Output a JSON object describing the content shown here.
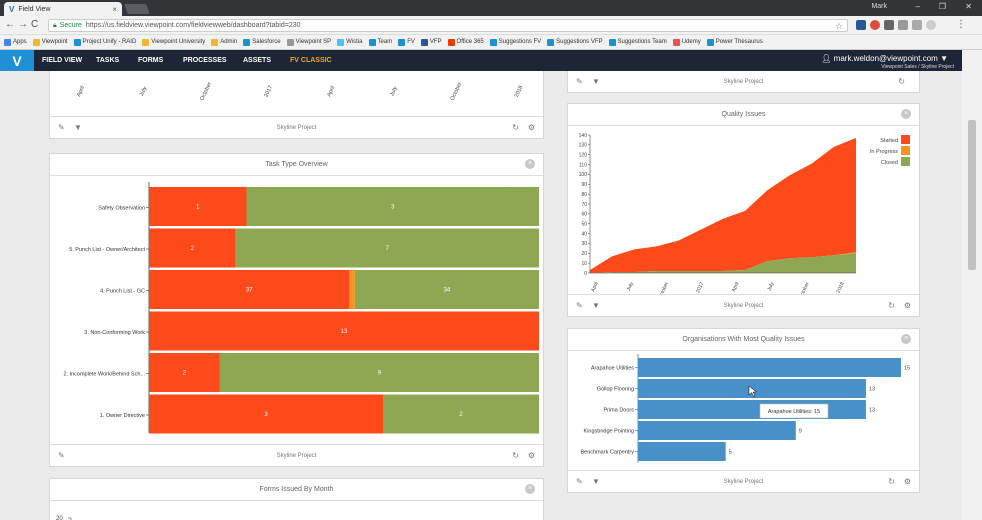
{
  "browser": {
    "tab_title": "Field View",
    "user": "Mark",
    "security_label": "Secure",
    "url": "https://us.fieldview.viewpoint.com/fieldviewweb/dashboard?tabid=230",
    "bookmarks": [
      {
        "label": "Apps",
        "color": "#4285f4"
      },
      {
        "label": "Viewpoint",
        "color": "#f2b632"
      },
      {
        "label": "Project Unify - RAID",
        "color": "#1f8fd6"
      },
      {
        "label": "Viewpoint University",
        "color": "#f2b632"
      },
      {
        "label": "Admin",
        "color": "#f2b632"
      },
      {
        "label": "Salesforce",
        "color": "#1798c1"
      },
      {
        "label": "Viewpoint SP",
        "color": "#999999"
      },
      {
        "label": "Wistia",
        "color": "#54bbff"
      },
      {
        "label": "Team",
        "color": "#1f8fd6"
      },
      {
        "label": "FV",
        "color": "#1f8fd6"
      },
      {
        "label": "VFP",
        "color": "#2b579a"
      },
      {
        "label": "Office 365",
        "color": "#eb3c00"
      },
      {
        "label": "Suggestions FV",
        "color": "#1f8fd6"
      },
      {
        "label": "Suggestions VFP",
        "color": "#1f8fd6"
      },
      {
        "label": "Suggestions Team",
        "color": "#1f8fd6"
      },
      {
        "label": "Udemy",
        "color": "#ec5252"
      },
      {
        "label": "Power Thesaurus",
        "color": "#1f8fd6"
      }
    ]
  },
  "app": {
    "logo": "V",
    "nav": [
      "FIELD VIEW",
      "TASKS",
      "FORMS",
      "PROCESSES",
      "ASSETS",
      "FV CLASSIC"
    ],
    "user_email": "mark.weldon@viewpoint.com",
    "user_sub": "Viewpoint Sales / Skyline Project"
  },
  "colors": {
    "started": "#fc4a1a",
    "in_progress": "#f7931e",
    "closed": "#8da753",
    "blue": "#4890c8"
  },
  "footer_label": "Skyline Project",
  "top_left_ticks": [
    "April",
    "July",
    "October",
    "2017",
    "April",
    "July",
    "October",
    "2018"
  ],
  "task_type": {
    "title": "Task Type Overview",
    "chart_data": {
      "type": "bar",
      "orientation": "horizontal",
      "stacked": true,
      "normalized": true,
      "categories": [
        "Safety Observation",
        "5. Punch List - Owner/Architect",
        "4. Punch List - GC",
        "3. Non-Conforming Work",
        "2. Incomplete Work/Behind Sch...",
        "1. Owner Directive"
      ],
      "series": [
        {
          "name": "Started",
          "values": [
            1,
            2,
            37,
            13,
            2,
            3
          ]
        },
        {
          "name": "In Progress",
          "values": [
            0,
            0,
            1,
            0,
            0,
            0
          ]
        },
        {
          "name": "Closed",
          "values": [
            3,
            7,
            34,
            0,
            9,
            2
          ]
        }
      ]
    }
  },
  "quality": {
    "title": "Quality Issues",
    "legend": [
      "Started",
      "In Progress",
      "Closed"
    ],
    "chart_data": {
      "type": "area",
      "stacked": true,
      "ylim": [
        0,
        140
      ],
      "yticks": [
        0,
        10,
        20,
        30,
        40,
        50,
        60,
        70,
        80,
        90,
        100,
        110,
        120,
        130,
        140
      ],
      "xticks": [
        "April",
        "July",
        "October",
        "2017",
        "April",
        "July",
        "October",
        "2018"
      ],
      "x": [
        "2016-03",
        "2016-05",
        "2016-07",
        "2016-09",
        "2016-11",
        "2017-01",
        "2017-03",
        "2017-05",
        "2017-07",
        "2017-09",
        "2017-11",
        "2018-01",
        "2018-03"
      ],
      "series": [
        {
          "name": "Closed",
          "values": [
            0,
            1,
            1,
            2,
            2,
            2,
            2,
            3,
            12,
            15,
            16,
            18,
            20
          ]
        },
        {
          "name": "In Progress",
          "values": [
            0,
            0,
            0,
            0,
            0,
            0,
            0,
            0,
            0,
            0,
            0,
            0,
            1
          ]
        },
        {
          "name": "Started",
          "values": [
            3,
            16,
            23,
            25,
            31,
            42,
            53,
            60,
            72,
            84,
            95,
            110,
            116
          ]
        }
      ]
    }
  },
  "orgs": {
    "title": "Organisations With Most Quality Issues",
    "tooltip": "Arapahoe Utilities: 15",
    "chart_data": {
      "type": "bar",
      "orientation": "horizontal",
      "categories": [
        "Arapahoe Utilities",
        "Gollop Flooring",
        "Prima Doors",
        "Kingsbridge Pointing",
        "Benchmark Carpentry"
      ],
      "values": [
        15,
        13,
        13,
        9,
        5
      ]
    }
  },
  "forms": {
    "title": "Forms Issued By Month",
    "y_first_tick": "20"
  }
}
